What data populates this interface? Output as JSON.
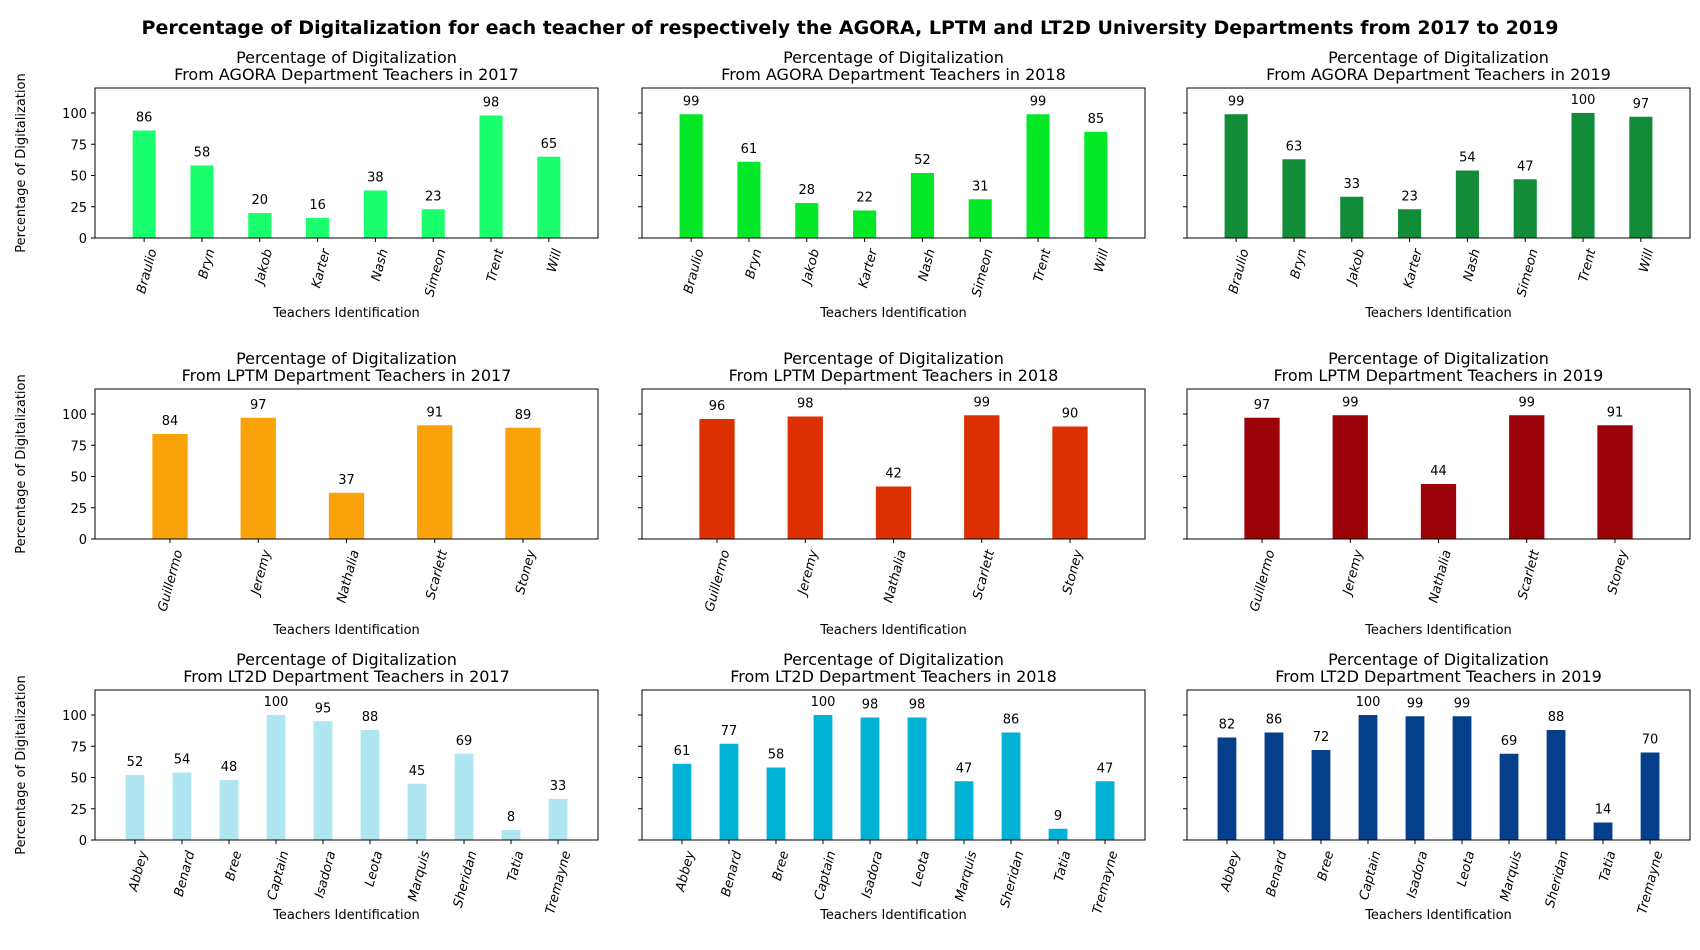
{
  "suptitle": "Percentage of Digitalization for each teacher of respectively the AGORA, LPTM and LT2D University Departments from 2017 to 2019",
  "y_ticks": [
    0,
    25,
    50,
    75,
    100
  ],
  "chart_data": [
    {
      "type": "bar",
      "title_line1": "Percentage of Digitalization",
      "title_line2": "From AGORA Department Teachers in 2017",
      "xlabel": "Teachers Identification",
      "ylabel": "Percentage of Digitalization",
      "ylim": [
        0,
        120
      ],
      "color": "#19ff6e",
      "categories": [
        "Braulio",
        "Bryn",
        "Jakob",
        "Karter",
        "Nash",
        "Simeon",
        "Trent",
        "Will"
      ],
      "values": [
        86,
        58,
        20,
        16,
        38,
        23,
        98,
        65
      ]
    },
    {
      "type": "bar",
      "title_line1": "Percentage of Digitalization",
      "title_line2": "From AGORA Department Teachers in 2018",
      "xlabel": "Teachers Identification",
      "ylabel": "",
      "ylim": [
        0,
        120
      ],
      "color": "#05e828",
      "categories": [
        "Braulio",
        "Bryn",
        "Jakob",
        "Karter",
        "Nash",
        "Simeon",
        "Trent",
        "Will"
      ],
      "values": [
        99,
        61,
        28,
        22,
        52,
        31,
        99,
        85
      ]
    },
    {
      "type": "bar",
      "title_line1": "Percentage of Digitalization",
      "title_line2": "From AGORA Department Teachers in 2019",
      "xlabel": "Teachers Identification",
      "ylabel": "",
      "ylim": [
        0,
        120
      ],
      "color": "#138c3a",
      "categories": [
        "Braulio",
        "Bryn",
        "Jakob",
        "Karter",
        "Nash",
        "Simeon",
        "Trent",
        "Will"
      ],
      "values": [
        99,
        63,
        33,
        23,
        54,
        47,
        100,
        97
      ]
    },
    {
      "type": "bar",
      "title_line1": "Percentage of Digitalization",
      "title_line2": "From LPTM Department Teachers in 2017",
      "xlabel": "Teachers Identification",
      "ylabel": "Percentage of Digitalization",
      "ylim": [
        0,
        120
      ],
      "color": "#f9a20a",
      "categories": [
        "Guillermo",
        "Jeremy",
        "Nathalia",
        "Scarlett",
        "Stoney"
      ],
      "values": [
        84,
        97,
        37,
        91,
        89
      ]
    },
    {
      "type": "bar",
      "title_line1": "Percentage of Digitalization",
      "title_line2": "From LPTM Department Teachers in 2018",
      "xlabel": "Teachers Identification",
      "ylabel": "",
      "ylim": [
        0,
        120
      ],
      "color": "#dd3002",
      "categories": [
        "Guillermo",
        "Jeremy",
        "Nathalia",
        "Scarlett",
        "Stoney"
      ],
      "values": [
        96,
        98,
        42,
        99,
        90
      ]
    },
    {
      "type": "bar",
      "title_line1": "Percentage of Digitalization",
      "title_line2": "From LPTM Department Teachers in 2019",
      "xlabel": "Teachers Identification",
      "ylabel": "",
      "ylim": [
        0,
        120
      ],
      "color": "#9b0209",
      "categories": [
        "Guillermo",
        "Jeremy",
        "Nathalia",
        "Scarlett",
        "Stoney"
      ],
      "values": [
        97,
        99,
        44,
        99,
        91
      ]
    },
    {
      "type": "bar",
      "title_line1": "Percentage of Digitalization",
      "title_line2": "From LT2D Department Teachers in 2017",
      "xlabel": "Teachers Identification",
      "ylabel": "Percentage of Digitalization",
      "ylim": [
        0,
        120
      ],
      "color": "#afe6f2",
      "categories": [
        "Abbey",
        "Benard",
        "Bree",
        "Captain",
        "Isadora",
        "Leota",
        "Marquis",
        "Sheridan",
        "Tatia",
        "Tremayne"
      ],
      "values": [
        52,
        54,
        48,
        100,
        95,
        88,
        45,
        69,
        8,
        33
      ]
    },
    {
      "type": "bar",
      "title_line1": "Percentage of Digitalization",
      "title_line2": "From LT2D Department Teachers in 2018",
      "xlabel": "Teachers Identification",
      "ylabel": "",
      "ylim": [
        0,
        120
      ],
      "color": "#02b2d6",
      "categories": [
        "Abbey",
        "Benard",
        "Bree",
        "Captain",
        "Isadora",
        "Leota",
        "Marquis",
        "Sheridan",
        "Tatia",
        "Tremayne"
      ],
      "values": [
        61,
        77,
        58,
        100,
        98,
        98,
        47,
        86,
        9,
        47
      ]
    },
    {
      "type": "bar",
      "title_line1": "Percentage of Digitalization",
      "title_line2": "From LT2D Department Teachers in 2019",
      "xlabel": "Teachers Identification",
      "ylabel": "",
      "ylim": [
        0,
        120
      ],
      "color": "#053f8b",
      "categories": [
        "Abbey",
        "Benard",
        "Bree",
        "Captain",
        "Isadora",
        "Leota",
        "Marquis",
        "Sheridan",
        "Tatia",
        "Tremayne"
      ],
      "values": [
        82,
        86,
        72,
        100,
        99,
        99,
        69,
        88,
        14,
        70
      ]
    }
  ]
}
